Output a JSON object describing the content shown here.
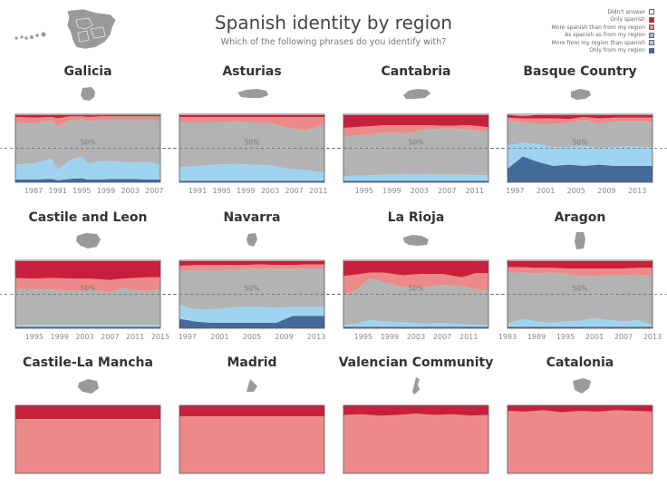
{
  "title": "Spanish identity by region",
  "subtitle": "Which of the following phrases do you identify with?",
  "reference_label": "50%",
  "legend": [
    {
      "label": "Didn't answer",
      "color": "#ffffff"
    },
    {
      "label": "Only spanish",
      "color": "#c8203c"
    },
    {
      "label": "More spanish than from my region",
      "color": "#ec8a8a"
    },
    {
      "label": "As spanish as from my region",
      "color": "#b3b3b3"
    },
    {
      "label": "More from my region than spanish",
      "color": "#9fd3ef"
    },
    {
      "label": "Only from my region",
      "color": "#446a9a"
    }
  ],
  "chart_data": [
    {
      "type": "area",
      "title": "Galicia",
      "stacked": true,
      "normalized": true,
      "x": [
        1984,
        1987,
        1990,
        1991,
        1993,
        1995,
        1996,
        1998,
        2000,
        2003,
        2006,
        2008
      ],
      "ticks": [
        "1987",
        "1991",
        "1995",
        "1999",
        "2003",
        "2007"
      ],
      "series": [
        {
          "name": "Only from my region",
          "values": [
            4,
            4,
            5,
            3,
            5,
            6,
            4,
            4,
            5,
            5,
            4,
            4
          ]
        },
        {
          "name": "More from my region than spanish",
          "values": [
            22,
            24,
            30,
            15,
            28,
            32,
            24,
            27,
            26,
            24,
            26,
            22
          ]
        },
        {
          "name": "As spanish as from my region",
          "values": [
            62,
            58,
            56,
            64,
            58,
            55,
            62,
            60,
            60,
            62,
            62,
            64
          ]
        },
        {
          "name": "More spanish than from my region",
          "values": [
            8,
            9,
            5,
            12,
            6,
            4,
            6,
            6,
            6,
            6,
            5,
            7
          ]
        },
        {
          "name": "Only spanish",
          "values": [
            3,
            4,
            3,
            5,
            2,
            2,
            3,
            2,
            2,
            2,
            2,
            2
          ]
        },
        {
          "name": "Didn't answer",
          "values": [
            1,
            1,
            1,
            1,
            1,
            1,
            1,
            1,
            1,
            1,
            1,
            1
          ]
        }
      ]
    },
    {
      "type": "area",
      "title": "Asturias",
      "stacked": true,
      "normalized": true,
      "x": [
        1988,
        1991,
        1994,
        1997,
        2000,
        2003,
        2006,
        2009,
        2012
      ],
      "ticks": [
        "1991",
        "1995",
        "1999",
        "2003",
        "2007",
        "2011"
      ],
      "series": [
        {
          "name": "Only from my region",
          "values": [
            2,
            2,
            2,
            2,
            2,
            2,
            2,
            2,
            2
          ]
        },
        {
          "name": "More from my region than spanish",
          "values": [
            20,
            22,
            24,
            25,
            24,
            23,
            18,
            16,
            12
          ]
        },
        {
          "name": "As spanish as from my region",
          "values": [
            66,
            64,
            62,
            62,
            62,
            62,
            60,
            58,
            72
          ]
        },
        {
          "name": "More spanish than from my region",
          "values": [
            8,
            8,
            8,
            7,
            8,
            9,
            16,
            20,
            10
          ]
        },
        {
          "name": "Only spanish",
          "values": [
            3,
            3,
            3,
            3,
            3,
            3,
            3,
            3,
            3
          ]
        },
        {
          "name": "Didn't answer",
          "values": [
            1,
            1,
            1,
            1,
            1,
            1,
            1,
            1,
            1
          ]
        }
      ]
    },
    {
      "type": "area",
      "title": "Cantabria",
      "stacked": true,
      "normalized": true,
      "x": [
        1992,
        1995,
        1998,
        2001,
        2004,
        2007,
        2010,
        2013
      ],
      "ticks": [
        "1995",
        "1999",
        "2003",
        "2007",
        "2011"
      ],
      "series": [
        {
          "name": "Only from my region",
          "values": [
            2,
            2,
            2,
            2,
            2,
            2,
            2,
            2
          ]
        },
        {
          "name": "More from my region than spanish",
          "values": [
            7,
            8,
            9,
            10,
            10,
            9,
            9,
            8
          ]
        },
        {
          "name": "As spanish as from my region",
          "values": [
            58,
            60,
            62,
            60,
            66,
            68,
            67,
            65
          ]
        },
        {
          "name": "More spanish than from my region",
          "values": [
            13,
            12,
            11,
            12,
            6,
            4,
            6,
            6
          ]
        },
        {
          "name": "Only spanish",
          "values": [
            19,
            17,
            15,
            15,
            15,
            16,
            15,
            18
          ]
        },
        {
          "name": "Didn't answer",
          "values": [
            1,
            1,
            1,
            1,
            1,
            1,
            1,
            1
          ]
        }
      ]
    },
    {
      "type": "area",
      "title": "Basque Country",
      "stacked": true,
      "normalized": true,
      "x": [
        1996,
        1998,
        2000,
        2002,
        2004,
        2006,
        2008,
        2010,
        2012,
        2014,
        2015
      ],
      "ticks": [
        "1997",
        "2001",
        "2005",
        "2009",
        "2013"
      ],
      "series": [
        {
          "name": "Only from my region",
          "values": [
            20,
            38,
            30,
            24,
            26,
            24,
            26,
            24,
            24,
            24,
            24
          ]
        },
        {
          "name": "More from my region than spanish",
          "values": [
            34,
            20,
            26,
            28,
            26,
            30,
            24,
            28,
            29,
            28,
            28
          ]
        },
        {
          "name": "As spanish as from my region",
          "values": [
            36,
            30,
            30,
            34,
            35,
            38,
            36,
            37,
            36,
            37,
            37
          ]
        },
        {
          "name": "More spanish than from my region",
          "values": [
            5,
            6,
            8,
            8,
            6,
            4,
            8,
            6,
            6,
            6,
            6
          ]
        },
        {
          "name": "Only spanish",
          "values": [
            4,
            4,
            5,
            5,
            6,
            3,
            5,
            4,
            4,
            4,
            4
          ]
        },
        {
          "name": "Didn't answer",
          "values": [
            1,
            2,
            1,
            1,
            1,
            1,
            1,
            1,
            1,
            1,
            1
          ]
        }
      ]
    },
    {
      "type": "area",
      "title": "Castile and Leon",
      "stacked": true,
      "normalized": true,
      "x": [
        1992,
        1995,
        1998,
        2001,
        2004,
        2007,
        2009,
        2011,
        2013,
        2015
      ],
      "ticks": [
        "1995",
        "1999",
        "2003",
        "2007",
        "2011",
        "2015"
      ],
      "series": [
        {
          "name": "Only from my region",
          "values": [
            2,
            2,
            2,
            2,
            2,
            2,
            2,
            2,
            2,
            2
          ]
        },
        {
          "name": "More from my region than spanish",
          "values": [
            3,
            3,
            3,
            3,
            3,
            3,
            3,
            3,
            3,
            3
          ]
        },
        {
          "name": "As spanish as from my region",
          "values": [
            53,
            52,
            52,
            50,
            52,
            48,
            54,
            51,
            50,
            52
          ]
        },
        {
          "name": "More spanish than from my region",
          "values": [
            16,
            16,
            17,
            18,
            16,
            18,
            14,
            18,
            20,
            18
          ]
        },
        {
          "name": "Only spanish",
          "values": [
            25,
            26,
            25,
            26,
            26,
            28,
            26,
            25,
            24,
            24
          ]
        },
        {
          "name": "Didn't answer",
          "values": [
            1,
            1,
            1,
            1,
            1,
            1,
            1,
            1,
            1,
            1
          ]
        }
      ]
    },
    {
      "type": "area",
      "title": "Navarra",
      "stacked": true,
      "normalized": true,
      "x": [
        1996,
        1998,
        2000,
        2002,
        2004,
        2006,
        2008,
        2010,
        2012,
        2014
      ],
      "ticks": [
        "1997",
        "2001",
        "2005",
        "2009",
        "2013"
      ],
      "series": [
        {
          "name": "Only from my region",
          "values": [
            14,
            10,
            8,
            8,
            8,
            8,
            8,
            18,
            18,
            18
          ]
        },
        {
          "name": "More from my region than spanish",
          "values": [
            20,
            18,
            20,
            22,
            24,
            24,
            22,
            14,
            14,
            14
          ]
        },
        {
          "name": "As spanish as from my region",
          "values": [
            50,
            58,
            58,
            56,
            55,
            56,
            57,
            55,
            56,
            56
          ]
        },
        {
          "name": "More spanish than from my region",
          "values": [
            8,
            7,
            7,
            7,
            6,
            6,
            6,
            6,
            6,
            6
          ]
        },
        {
          "name": "Only spanish",
          "values": [
            7,
            6,
            6,
            6,
            6,
            5,
            6,
            6,
            5,
            5
          ]
        },
        {
          "name": "Didn't answer",
          "values": [
            1,
            1,
            1,
            1,
            1,
            1,
            1,
            1,
            1,
            1
          ]
        }
      ]
    },
    {
      "type": "area",
      "title": "La Rioja",
      "stacked": true,
      "normalized": true,
      "x": [
        1992,
        1994,
        1996,
        1998,
        2001,
        2004,
        2007,
        2010,
        2012,
        2014
      ],
      "ticks": [
        "1995",
        "1999",
        "2003",
        "2007",
        "2011"
      ],
      "series": [
        {
          "name": "Only from my region",
          "values": [
            2,
            2,
            2,
            2,
            2,
            2,
            2,
            2,
            2,
            2
          ]
        },
        {
          "name": "More from my region than spanish",
          "values": [
            3,
            5,
            10,
            8,
            7,
            5,
            6,
            4,
            3,
            3
          ]
        },
        {
          "name": "As spanish as from my region",
          "values": [
            44,
            50,
            62,
            58,
            52,
            53,
            56,
            56,
            52,
            50
          ]
        },
        {
          "name": "More spanish than from my region",
          "values": [
            28,
            22,
            8,
            14,
            17,
            20,
            16,
            13,
            24,
            26
          ]
        },
        {
          "name": "Only spanish",
          "values": [
            22,
            20,
            17,
            17,
            21,
            19,
            19,
            24,
            18,
            18
          ]
        },
        {
          "name": "Didn't answer",
          "values": [
            1,
            1,
            1,
            1,
            1,
            1,
            1,
            1,
            1,
            1
          ]
        }
      ]
    },
    {
      "type": "area",
      "title": "Aragon",
      "stacked": true,
      "normalized": true,
      "x": [
        1983,
        1986,
        1989,
        1992,
        1995,
        1998,
        2001,
        2004,
        2007,
        2010,
        2013
      ],
      "ticks": [
        "1983",
        "1989",
        "1995",
        "2001",
        "2007",
        "2013"
      ],
      "series": [
        {
          "name": "Only from my region",
          "values": [
            2,
            2,
            2,
            2,
            2,
            2,
            2,
            2,
            2,
            2,
            2
          ]
        },
        {
          "name": "More from my region than spanish",
          "values": [
            4,
            12,
            8,
            6,
            8,
            9,
            13,
            10,
            8,
            10,
            3
          ]
        },
        {
          "name": "As spanish as from my region",
          "values": [
            76,
            68,
            70,
            74,
            70,
            66,
            62,
            66,
            68,
            67,
            72
          ]
        },
        {
          "name": "More spanish than from my region",
          "values": [
            8,
            8,
            9,
            7,
            8,
            11,
            11,
            10,
            10,
            10,
            12
          ]
        },
        {
          "name": "Only spanish",
          "values": [
            9,
            9,
            10,
            10,
            11,
            11,
            11,
            11,
            11,
            10,
            10
          ]
        },
        {
          "name": "Didn't answer",
          "values": [
            1,
            1,
            1,
            1,
            1,
            1,
            1,
            1,
            1,
            1,
            1
          ]
        }
      ]
    }
  ],
  "row3": [
    {
      "title": "Castile-La Mancha",
      "top": [
        {
          "name": "Only spanish",
          "values": [
            20,
            20,
            20,
            20,
            20,
            20,
            20,
            20,
            20
          ]
        }
      ]
    },
    {
      "title": "Madrid",
      "top": [
        {
          "name": "Only spanish",
          "values": [
            16,
            16,
            16,
            16,
            16,
            16,
            16,
            16,
            16
          ]
        }
      ]
    },
    {
      "title": "Valencian Community",
      "top": [
        {
          "name": "Only spanish",
          "values": [
            14,
            13,
            15,
            14,
            12,
            14,
            13,
            15,
            14
          ]
        }
      ]
    },
    {
      "title": "Catalonia",
      "top": [
        {
          "name": "Only spanish",
          "values": [
            8,
            9,
            7,
            10,
            8,
            9,
            7,
            8,
            9
          ]
        }
      ]
    }
  ]
}
